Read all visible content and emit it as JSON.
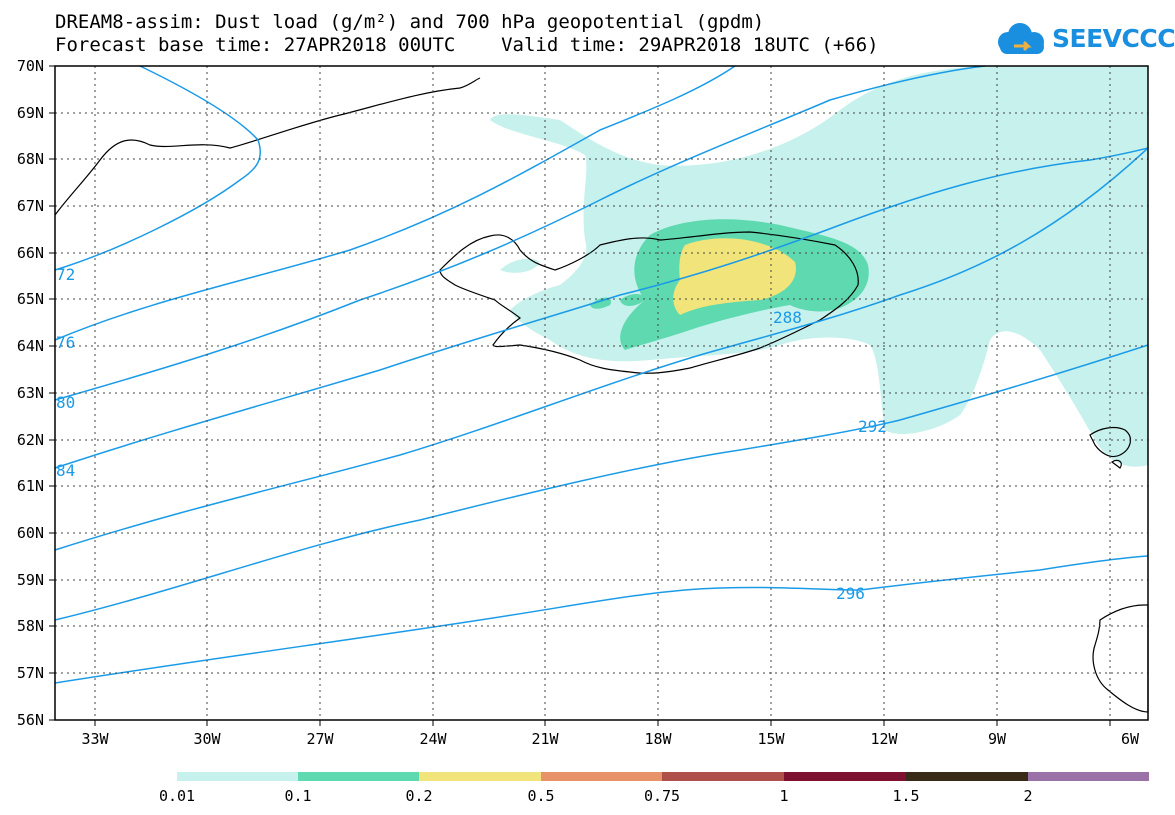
{
  "header": {
    "title_line1": "DREAM8-assim: Dust load (g/m²) and 700 hPa geopotential (gpdm)",
    "title_line2": "Forecast base time: 27APR2018 00UTC    Valid time: 29APR2018 18UTC (+66)"
  },
  "logo": {
    "text": "SEEVCCC"
  },
  "axes": {
    "lat_labels": [
      "70N",
      "69N",
      "68N",
      "67N",
      "66N",
      "65N",
      "64N",
      "63N",
      "62N",
      "61N",
      "60N",
      "59N",
      "58N",
      "57N",
      "56N"
    ],
    "lon_labels": [
      "33W",
      "30W",
      "27W",
      "24W",
      "21W",
      "18W",
      "15W",
      "12W",
      "9W",
      "6W"
    ]
  },
  "contours": {
    "labels": [
      "72",
      "76",
      "80",
      "84",
      "288",
      "292",
      "296"
    ],
    "color": "#1a9be8"
  },
  "colorbar": {
    "colors": [
      "#c6f1ec",
      "#5fd9b0",
      "#f0e47a",
      "#e8926a",
      "#b0504a",
      "#7e1030",
      "#3a2a18",
      "#9a72a8"
    ],
    "tick_labels": [
      "0.01",
      "0.1",
      "0.2",
      "0.5",
      "0.75",
      "1",
      "1.5",
      "2"
    ]
  }
}
